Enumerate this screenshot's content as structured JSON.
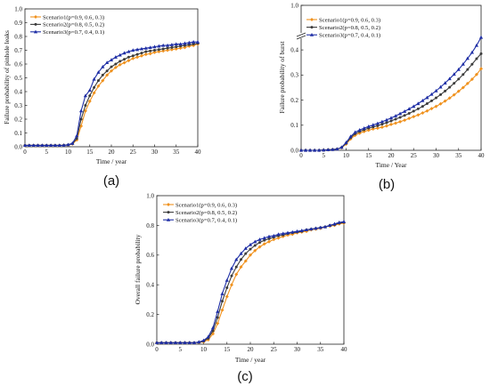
{
  "chart_data": [
    {
      "panel": "(a)",
      "type": "line",
      "xlabel": "Time / year",
      "ylabel": "Failure probability of pinhole leaks",
      "xlim": [
        0,
        40
      ],
      "ylim": [
        0,
        1.0
      ],
      "xticks": [
        "0",
        "5",
        "10",
        "15",
        "20",
        "25",
        "30",
        "35",
        "40"
      ],
      "yticks": [
        "0.0",
        "0.1",
        "0.2",
        "0.3",
        "0.4",
        "0.5",
        "0.6",
        "0.7",
        "0.8",
        "0.9",
        "1.0"
      ],
      "legend_position": "top-left",
      "x": [
        0,
        1,
        2,
        3,
        4,
        5,
        6,
        7,
        8,
        9,
        10,
        11,
        12,
        13,
        14,
        15,
        16,
        17,
        18,
        19,
        20,
        21,
        22,
        23,
        24,
        25,
        26,
        27,
        28,
        29,
        30,
        31,
        32,
        33,
        34,
        35,
        36,
        37,
        38,
        39,
        40
      ],
      "series": [
        {
          "name": "Scenario1(p=0.9, 0.6, 0.3)",
          "color": "#f0921e",
          "marker": "diamond",
          "values": [
            0.01,
            0.01,
            0.01,
            0.01,
            0.01,
            0.01,
            0.01,
            0.01,
            0.01,
            0.011,
            0.013,
            0.02,
            0.05,
            0.15,
            0.26,
            0.33,
            0.39,
            0.44,
            0.48,
            0.52,
            0.55,
            0.575,
            0.595,
            0.61,
            0.625,
            0.64,
            0.65,
            0.66,
            0.67,
            0.675,
            0.685,
            0.69,
            0.695,
            0.7,
            0.705,
            0.71,
            0.715,
            0.72,
            0.73,
            0.735,
            0.745
          ]
        },
        {
          "name": "Scenario2(p=0.8, 0.5, 0.2)",
          "color": "#3c3c3c",
          "marker": "circle",
          "values": [
            0.01,
            0.01,
            0.01,
            0.01,
            0.01,
            0.01,
            0.01,
            0.01,
            0.01,
            0.011,
            0.014,
            0.022,
            0.06,
            0.2,
            0.3,
            0.37,
            0.43,
            0.48,
            0.52,
            0.55,
            0.58,
            0.6,
            0.62,
            0.635,
            0.65,
            0.66,
            0.67,
            0.68,
            0.69,
            0.695,
            0.7,
            0.705,
            0.71,
            0.715,
            0.72,
            0.725,
            0.73,
            0.735,
            0.74,
            0.745,
            0.75
          ]
        },
        {
          "name": "Scenario3(p=0.7, 0.4, 0.1)",
          "color": "#1f2fa6",
          "marker": "triangle",
          "values": [
            0.01,
            0.01,
            0.01,
            0.01,
            0.01,
            0.01,
            0.01,
            0.01,
            0.01,
            0.011,
            0.015,
            0.025,
            0.08,
            0.26,
            0.37,
            0.41,
            0.49,
            0.54,
            0.58,
            0.61,
            0.63,
            0.65,
            0.665,
            0.68,
            0.69,
            0.7,
            0.705,
            0.71,
            0.715,
            0.72,
            0.725,
            0.73,
            0.735,
            0.735,
            0.74,
            0.745,
            0.745,
            0.75,
            0.755,
            0.76,
            0.76
          ]
        }
      ]
    },
    {
      "panel": "(b)",
      "type": "line",
      "xlabel": "Time / Year",
      "ylabel": "Failure probability of burst",
      "xlim": [
        0,
        40
      ],
      "ylim": [
        0,
        1.0
      ],
      "axis_break": [
        0.45,
        0.98
      ],
      "xticks": [
        "0",
        "5",
        "10",
        "15",
        "20",
        "25",
        "30",
        "35",
        "40"
      ],
      "yticks": [
        "0.0",
        "0.1",
        "0.2",
        "0.3",
        "0.4",
        "1.0"
      ],
      "legend_position": "top-left",
      "x": [
        0,
        1,
        2,
        3,
        4,
        5,
        6,
        7,
        8,
        9,
        10,
        11,
        12,
        13,
        14,
        15,
        16,
        17,
        18,
        19,
        20,
        21,
        22,
        23,
        24,
        25,
        26,
        27,
        28,
        29,
        30,
        31,
        32,
        33,
        34,
        35,
        36,
        37,
        38,
        39,
        40
      ],
      "series": [
        {
          "name": "Scenario1(p=0.9, 0.6, 0.3)",
          "color": "#f0921e",
          "marker": "diamond",
          "values": [
            0,
            0,
            0,
            0,
            0,
            0.001,
            0.002,
            0.003,
            0.005,
            0.01,
            0.025,
            0.045,
            0.06,
            0.068,
            0.075,
            0.08,
            0.085,
            0.088,
            0.092,
            0.097,
            0.103,
            0.108,
            0.114,
            0.12,
            0.127,
            0.134,
            0.141,
            0.149,
            0.157,
            0.166,
            0.175,
            0.185,
            0.196,
            0.208,
            0.221,
            0.235,
            0.25,
            0.266,
            0.283,
            0.302,
            0.325
          ]
        },
        {
          "name": "Scenario2(p=0.8, 0.5, 0.2)",
          "color": "#3c3c3c",
          "marker": "circle",
          "values": [
            0,
            0,
            0,
            0,
            0,
            0.001,
            0.002,
            0.003,
            0.005,
            0.011,
            0.028,
            0.05,
            0.066,
            0.075,
            0.082,
            0.088,
            0.093,
            0.098,
            0.104,
            0.11,
            0.117,
            0.124,
            0.131,
            0.139,
            0.147,
            0.156,
            0.165,
            0.175,
            0.186,
            0.197,
            0.209,
            0.222,
            0.236,
            0.251,
            0.267,
            0.284,
            0.302,
            0.322,
            0.343,
            0.365,
            0.385
          ]
        },
        {
          "name": "Scenario3(p=0.7, 0.4, 0.1)",
          "color": "#1f2fa6",
          "marker": "triangle",
          "values": [
            0,
            0,
            0,
            0,
            0,
            0.001,
            0.002,
            0.003,
            0.005,
            0.012,
            0.031,
            0.055,
            0.072,
            0.081,
            0.088,
            0.095,
            0.101,
            0.107,
            0.114,
            0.121,
            0.129,
            0.137,
            0.146,
            0.155,
            0.165,
            0.175,
            0.186,
            0.198,
            0.21,
            0.223,
            0.237,
            0.252,
            0.268,
            0.285,
            0.303,
            0.322,
            0.343,
            0.366,
            0.39,
            0.418,
            0.45
          ]
        }
      ]
    },
    {
      "panel": "(c)",
      "type": "line",
      "xlabel": "Time / year",
      "ylabel": "Overall failure probability",
      "xlim": [
        0,
        40
      ],
      "ylim": [
        0,
        1.0
      ],
      "xticks": [
        "0",
        "5",
        "10",
        "15",
        "20",
        "25",
        "30",
        "35",
        "40"
      ],
      "yticks": [
        "0.0",
        "0.2",
        "0.4",
        "0.6",
        "0.8",
        "1.0"
      ],
      "legend_position": "top-left",
      "x": [
        0,
        1,
        2,
        3,
        4,
        5,
        6,
        7,
        8,
        9,
        10,
        11,
        12,
        13,
        14,
        15,
        16,
        17,
        18,
        19,
        20,
        21,
        22,
        23,
        24,
        25,
        26,
        27,
        28,
        29,
        30,
        31,
        32,
        33,
        34,
        35,
        36,
        37,
        38,
        39,
        40
      ],
      "series": [
        {
          "name": "Scenario1(p=0.9, 0.6, 0.3)",
          "color": "#f0921e",
          "marker": "diamond",
          "values": [
            0.01,
            0.01,
            0.01,
            0.01,
            0.01,
            0.01,
            0.01,
            0.01,
            0.01,
            0.012,
            0.016,
            0.03,
            0.07,
            0.14,
            0.23,
            0.32,
            0.4,
            0.47,
            0.52,
            0.56,
            0.6,
            0.63,
            0.655,
            0.675,
            0.69,
            0.705,
            0.715,
            0.725,
            0.735,
            0.74,
            0.75,
            0.755,
            0.76,
            0.77,
            0.775,
            0.78,
            0.79,
            0.795,
            0.8,
            0.81,
            0.815
          ]
        },
        {
          "name": "Scenario2(p=0.8, 0.5, 0.2)",
          "color": "#3c3c3c",
          "marker": "circle",
          "values": [
            0.01,
            0.01,
            0.01,
            0.01,
            0.01,
            0.01,
            0.01,
            0.01,
            0.01,
            0.013,
            0.02,
            0.04,
            0.09,
            0.18,
            0.29,
            0.38,
            0.46,
            0.52,
            0.57,
            0.61,
            0.64,
            0.665,
            0.685,
            0.7,
            0.71,
            0.72,
            0.73,
            0.735,
            0.745,
            0.75,
            0.755,
            0.76,
            0.77,
            0.775,
            0.78,
            0.785,
            0.79,
            0.8,
            0.805,
            0.815,
            0.82
          ]
        },
        {
          "name": "Scenario3(p=0.7, 0.4, 0.1)",
          "color": "#1f2fa6",
          "marker": "triangle",
          "values": [
            0.01,
            0.01,
            0.01,
            0.01,
            0.01,
            0.01,
            0.01,
            0.01,
            0.01,
            0.015,
            0.025,
            0.05,
            0.11,
            0.22,
            0.34,
            0.43,
            0.51,
            0.57,
            0.61,
            0.645,
            0.67,
            0.69,
            0.705,
            0.715,
            0.725,
            0.73,
            0.74,
            0.745,
            0.75,
            0.755,
            0.76,
            0.765,
            0.77,
            0.775,
            0.78,
            0.785,
            0.79,
            0.8,
            0.81,
            0.82,
            0.825
          ]
        }
      ]
    }
  ]
}
